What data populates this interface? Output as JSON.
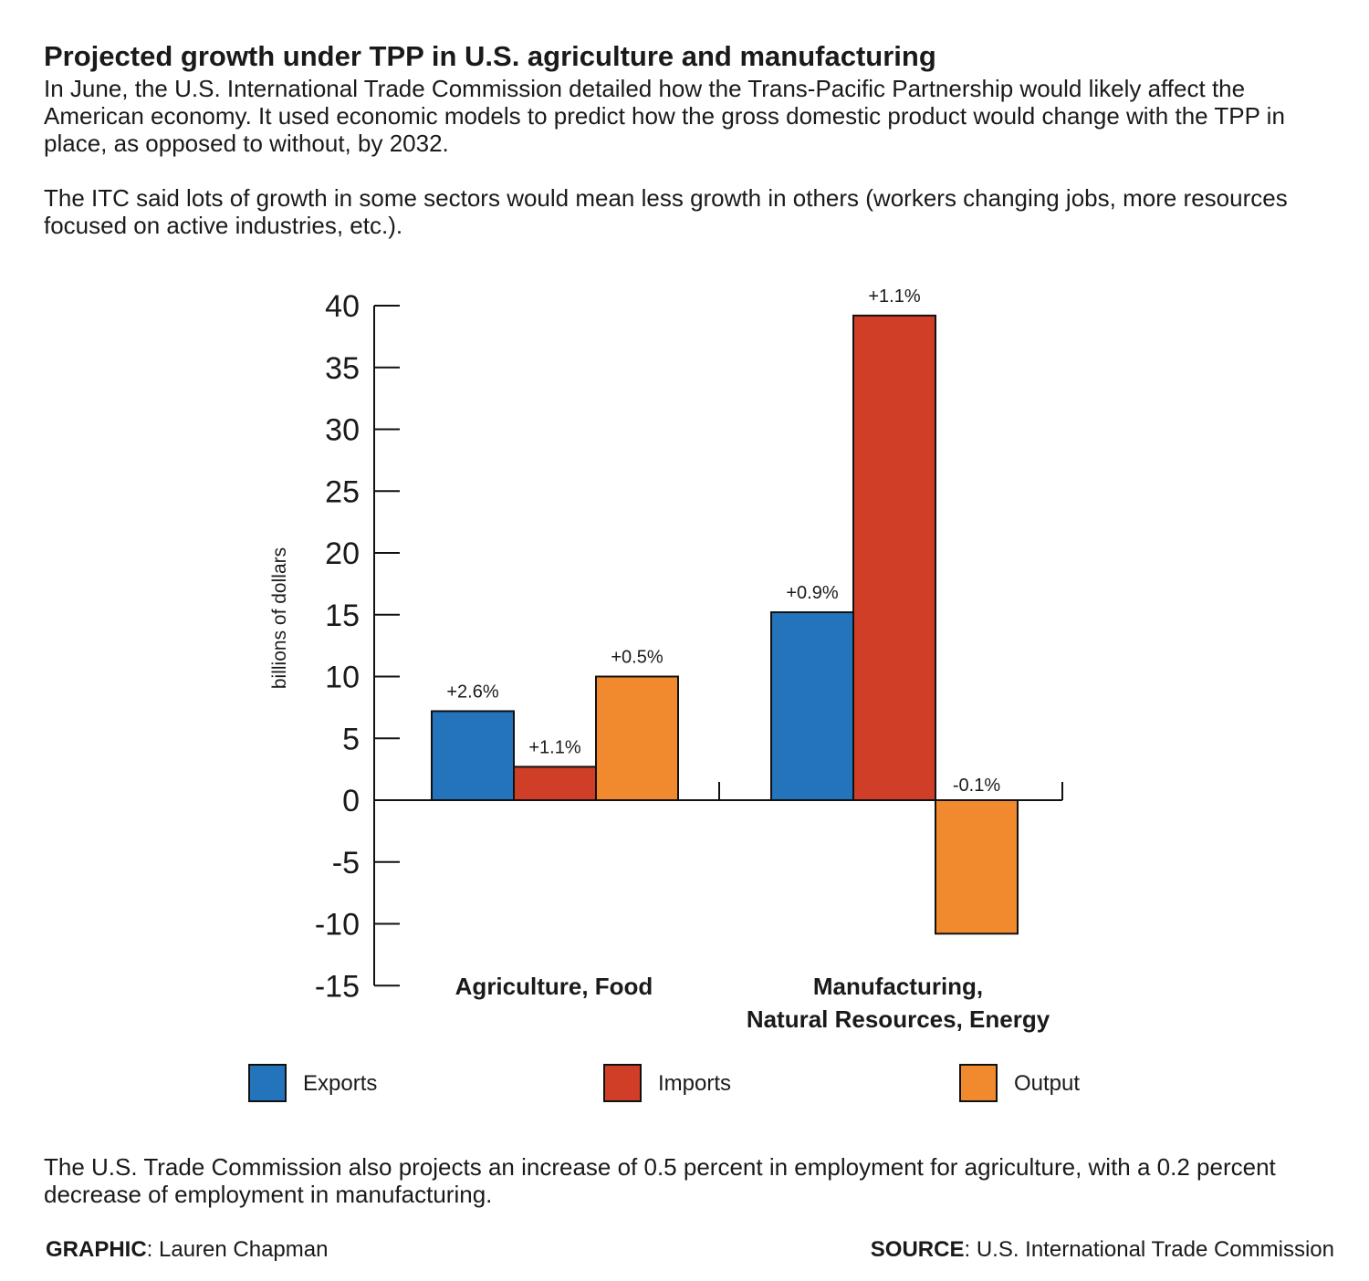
{
  "title": "Projected growth under TPP in U.S. agriculture and manufacturing",
  "intro_paragraphs": [
    "In June, the U.S. International Trade Commission detailed how the Trans-Pacific Partnership would likely affect the American economy. It used economic models to predict how the gross domestic product would change with the TPP in place, as opposed to without, by 2032.",
    "The ITC said lots of growth in some sectors would mean less growth in others (workers changing jobs, more resources focused on active industries, etc.)."
  ],
  "chart_data": {
    "type": "bar",
    "ylabel": "billions of dollars",
    "ylim": [
      -15,
      40
    ],
    "yticks": [
      40,
      35,
      30,
      25,
      20,
      15,
      10,
      5,
      0,
      -5,
      -10,
      -15
    ],
    "categories": [
      "Agriculture, Food",
      "Manufacturing, Natural Resources, Energy"
    ],
    "category_lines": [
      [
        "Agriculture, Food"
      ],
      [
        "Manufacturing,",
        "Natural Resources, Energy"
      ]
    ],
    "series": [
      {
        "name": "Exports",
        "color": "#2474bb",
        "values": [
          7.2,
          15.2
        ],
        "labels": [
          "+2.6%",
          "+0.9%"
        ]
      },
      {
        "name": "Imports",
        "color": "#d03e27",
        "values": [
          2.7,
          39.2
        ],
        "labels": [
          "+1.1%",
          "+1.1%"
        ]
      },
      {
        "name": "Output",
        "color": "#f18a2e",
        "values": [
          10,
          -10.8
        ],
        "labels": [
          "+0.5%",
          "-0.1%"
        ]
      }
    ],
    "legend_position": "bottom",
    "grid": false
  },
  "closing_paragraph": "The U.S. Trade Commission also projects an increase of 0.5 percent in employment for agriculture, with a 0.2 percent decrease of employment in manufacturing.",
  "footer": {
    "graphic_label": "GRAPHIC",
    "graphic_value": ": Lauren Chapman",
    "source_label": "SOURCE",
    "source_value": ": U.S. International Trade Commission"
  }
}
